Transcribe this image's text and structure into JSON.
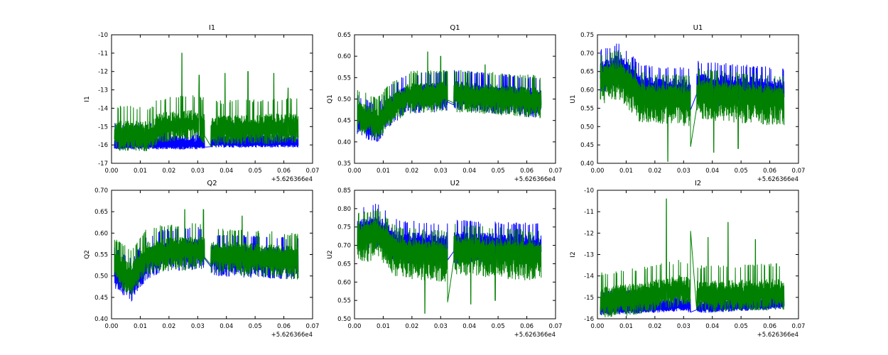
{
  "chart_data": [
    {
      "type": "line",
      "title": "I1",
      "ylabel": "I1",
      "xlim": [
        0.0,
        0.07
      ],
      "ylim": [
        -17,
        -10
      ],
      "x_ticks": [
        "0.00",
        "0.01",
        "0.02",
        "0.03",
        "0.04",
        "0.05",
        "0.06",
        "0.07"
      ],
      "y_ticks": [
        "-17",
        "-16",
        "-15",
        "-14",
        "-13",
        "-12",
        "-11",
        "-10"
      ],
      "x_offset_label": "+5.626366e4",
      "grid": false,
      "series": [
        {
          "color": "#0000ff",
          "x_range": [
            0.001,
            0.065
          ],
          "gap": [
            0.0325,
            0.0345
          ],
          "base": [
            [
              0.001,
              -16.0
            ],
            [
              0.03,
              -16.0
            ],
            [
              0.034,
              -15.9
            ],
            [
              0.065,
              -15.9
            ]
          ],
          "spread_low": 0.25,
          "spread_high": 1.2
        },
        {
          "color": "#008000",
          "x_range": [
            0.001,
            0.065
          ],
          "gap": [
            0.0325,
            0.0345
          ],
          "base": [
            [
              0.001,
              -15.4
            ],
            [
              0.014,
              -15.5
            ],
            [
              0.016,
              -15.0
            ],
            [
              0.03,
              -14.8
            ],
            [
              0.034,
              -15.2
            ],
            [
              0.065,
              -15.0
            ]
          ],
          "spread_low": 0.9,
          "spread_high": 1.6,
          "peaks": [
            [
              0.0245,
              -11.0
            ],
            [
              0.0305,
              -12.2
            ],
            [
              0.0395,
              -12.1
            ],
            [
              0.0475,
              -12.0
            ],
            [
              0.0565,
              -12.1
            ],
            [
              0.0615,
              -12.9
            ]
          ]
        }
      ]
    },
    {
      "type": "line",
      "title": "Q1",
      "ylabel": "Q1",
      "xlim": [
        0.0,
        0.07
      ],
      "ylim": [
        0.35,
        0.65
      ],
      "x_ticks": [
        "0.00",
        "0.01",
        "0.02",
        "0.03",
        "0.04",
        "0.05",
        "0.06",
        "0.07"
      ],
      "y_ticks": [
        "0.35",
        "0.40",
        "0.45",
        "0.50",
        "0.55",
        "0.60",
        "0.65"
      ],
      "x_offset_label": "+5.626366e4",
      "grid": false,
      "series": [
        {
          "color": "#0000ff",
          "x_range": [
            0.001,
            0.065
          ],
          "gap": [
            0.0325,
            0.0345
          ],
          "base": [
            [
              0.001,
              0.46
            ],
            [
              0.008,
              0.44
            ],
            [
              0.012,
              0.48
            ],
            [
              0.018,
              0.51
            ],
            [
              0.032,
              0.515
            ],
            [
              0.034,
              0.52
            ],
            [
              0.065,
              0.5
            ]
          ],
          "spread_low": 0.045,
          "spread_high": 0.05
        },
        {
          "color": "#008000",
          "x_range": [
            0.001,
            0.065
          ],
          "gap": [
            0.0325,
            0.0345
          ],
          "base": [
            [
              0.001,
              0.47
            ],
            [
              0.008,
              0.45
            ],
            [
              0.012,
              0.48
            ],
            [
              0.018,
              0.51
            ],
            [
              0.032,
              0.515
            ],
            [
              0.034,
              0.515
            ],
            [
              0.065,
              0.5
            ]
          ],
          "spread_low": 0.045,
          "spread_high": 0.055,
          "peaks": [
            [
              0.0255,
              0.61
            ],
            [
              0.03,
              0.6
            ],
            [
              0.0455,
              0.58
            ]
          ]
        }
      ]
    },
    {
      "type": "line",
      "title": "U1",
      "ylabel": "U1",
      "xlim": [
        0.0,
        0.07
      ],
      "ylim": [
        0.4,
        0.75
      ],
      "x_ticks": [
        "0.00",
        "0.01",
        "0.02",
        "0.03",
        "0.04",
        "0.05",
        "0.06",
        "0.07"
      ],
      "y_ticks": [
        "0.40",
        "0.45",
        "0.50",
        "0.55",
        "0.60",
        "0.65",
        "0.70",
        "0.75"
      ],
      "x_offset_label": "+5.626366e4",
      "grid": false,
      "series": [
        {
          "color": "#0000ff",
          "x_range": [
            0.001,
            0.065
          ],
          "gap": [
            0.0325,
            0.0345
          ],
          "base": [
            [
              0.001,
              0.65
            ],
            [
              0.008,
              0.67
            ],
            [
              0.015,
              0.61
            ],
            [
              0.032,
              0.6
            ],
            [
              0.034,
              0.62
            ],
            [
              0.065,
              0.6
            ]
          ],
          "spread_low": 0.06,
          "spread_high": 0.06
        },
        {
          "color": "#008000",
          "x_range": [
            0.001,
            0.065
          ],
          "gap": [
            0.0325,
            0.0345
          ],
          "base": [
            [
              0.001,
              0.64
            ],
            [
              0.008,
              0.65
            ],
            [
              0.015,
              0.59
            ],
            [
              0.032,
              0.58
            ],
            [
              0.034,
              0.6
            ],
            [
              0.065,
              0.58
            ]
          ],
          "spread_low": 0.08,
          "spread_high": 0.06,
          "troughs": [
            [
              0.0245,
              0.405
            ],
            [
              0.0325,
              0.445
            ],
            [
              0.0405,
              0.43
            ],
            [
              0.049,
              0.44
            ]
          ]
        }
      ]
    },
    {
      "type": "line",
      "title": "Q2",
      "ylabel": "Q2",
      "xlim": [
        0.0,
        0.07
      ],
      "ylim": [
        0.4,
        0.7
      ],
      "x_ticks": [
        "0.00",
        "0.01",
        "0.02",
        "0.03",
        "0.04",
        "0.05",
        "0.06",
        "0.07"
      ],
      "y_ticks": [
        "0.40",
        "0.45",
        "0.50",
        "0.55",
        "0.60",
        "0.65",
        "0.70"
      ],
      "x_offset_label": "+5.626366e4",
      "grid": false,
      "series": [
        {
          "color": "#0000ff",
          "x_range": [
            0.001,
            0.065
          ],
          "gap": [
            0.0325,
            0.0345
          ],
          "base": [
            [
              0.001,
              0.52
            ],
            [
              0.007,
              0.49
            ],
            [
              0.012,
              0.54
            ],
            [
              0.018,
              0.56
            ],
            [
              0.032,
              0.565
            ],
            [
              0.034,
              0.55
            ],
            [
              0.065,
              0.54
            ]
          ],
          "spread_low": 0.05,
          "spread_high": 0.05
        },
        {
          "color": "#008000",
          "x_range": [
            0.001,
            0.065
          ],
          "gap": [
            0.0325,
            0.0345
          ],
          "base": [
            [
              0.001,
              0.53
            ],
            [
              0.007,
              0.5
            ],
            [
              0.012,
              0.55
            ],
            [
              0.018,
              0.56
            ],
            [
              0.032,
              0.565
            ],
            [
              0.034,
              0.555
            ],
            [
              0.065,
              0.54
            ]
          ],
          "spread_low": 0.05,
          "spread_high": 0.06,
          "peaks": [
            [
              0.0255,
              0.655
            ],
            [
              0.032,
              0.655
            ],
            [
              0.0455,
              0.64
            ]
          ]
        }
      ]
    },
    {
      "type": "line",
      "title": "U2",
      "ylabel": "U2",
      "xlim": [
        0.0,
        0.07
      ],
      "ylim": [
        0.5,
        0.85
      ],
      "x_ticks": [
        "0.00",
        "0.01",
        "0.02",
        "0.03",
        "0.04",
        "0.05",
        "0.06",
        "0.07"
      ],
      "y_ticks": [
        "0.50",
        "0.55",
        "0.60",
        "0.65",
        "0.70",
        "0.75",
        "0.80",
        "0.85"
      ],
      "x_offset_label": "+5.626366e4",
      "grid": false,
      "series": [
        {
          "color": "#0000ff",
          "x_range": [
            0.001,
            0.065
          ],
          "gap": [
            0.0325,
            0.0345
          ],
          "base": [
            [
              0.001,
              0.74
            ],
            [
              0.008,
              0.755
            ],
            [
              0.015,
              0.71
            ],
            [
              0.032,
              0.7
            ],
            [
              0.034,
              0.71
            ],
            [
              0.065,
              0.7
            ]
          ],
          "spread_low": 0.06,
          "spread_high": 0.06
        },
        {
          "color": "#008000",
          "x_range": [
            0.001,
            0.065
          ],
          "gap": [
            0.0325,
            0.0345
          ],
          "base": [
            [
              0.001,
              0.73
            ],
            [
              0.008,
              0.74
            ],
            [
              0.015,
              0.69
            ],
            [
              0.032,
              0.68
            ],
            [
              0.034,
              0.7
            ],
            [
              0.065,
              0.68
            ]
          ],
          "spread_low": 0.08,
          "spread_high": 0.06,
          "troughs": [
            [
              0.0245,
              0.515
            ],
            [
              0.0325,
              0.545
            ],
            [
              0.0405,
              0.54
            ],
            [
              0.049,
              0.55
            ]
          ]
        }
      ]
    },
    {
      "type": "line",
      "title": "I2",
      "ylabel": "I2",
      "xlim": [
        0.0,
        0.07
      ],
      "ylim": [
        -16,
        -10
      ],
      "x_ticks": [
        "0.00",
        "0.01",
        "0.02",
        "0.03",
        "0.04",
        "0.05",
        "0.06",
        "0.07"
      ],
      "y_ticks": [
        "-16",
        "-15",
        "-14",
        "-13",
        "-12",
        "-11",
        "-10"
      ],
      "x_offset_label": "+5.626366e4",
      "grid": false,
      "series": [
        {
          "color": "#0000ff",
          "x_range": [
            0.001,
            0.065
          ],
          "gap": [
            0.0325,
            0.0345
          ],
          "base": [
            [
              0.001,
              -15.6
            ],
            [
              0.03,
              -15.4
            ],
            [
              0.034,
              -15.5
            ],
            [
              0.065,
              -15.3
            ]
          ],
          "spread_low": 0.25,
          "spread_high": 0.9
        },
        {
          "color": "#008000",
          "x_range": [
            0.001,
            0.065
          ],
          "gap": [
            0.0325,
            0.0345
          ],
          "base": [
            [
              0.001,
              -15.2
            ],
            [
              0.014,
              -15.0
            ],
            [
              0.03,
              -14.6
            ],
            [
              0.034,
              -14.9
            ],
            [
              0.065,
              -14.8
            ]
          ],
          "spread_low": 0.8,
          "spread_high": 1.4,
          "peaks": [
            [
              0.024,
              -10.4
            ],
            [
              0.0325,
              -11.9
            ],
            [
              0.0385,
              -12.2
            ],
            [
              0.0455,
              -11.5
            ],
            [
              0.055,
              -12.3
            ]
          ]
        }
      ]
    }
  ]
}
